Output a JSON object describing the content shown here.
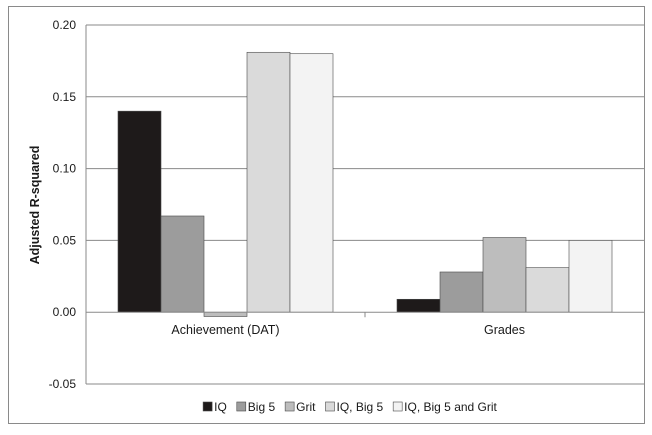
{
  "chart_data": {
    "type": "bar",
    "title": "",
    "xlabel": "",
    "ylabel": "Adjusted R-squared",
    "categories": [
      "Achievement (DAT)",
      "Grades"
    ],
    "series": [
      {
        "name": "IQ",
        "values": [
          0.14,
          0.009
        ],
        "color": "#1e1a1a"
      },
      {
        "name": "Big 5",
        "values": [
          0.067,
          0.028
        ],
        "color": "#9c9c9c"
      },
      {
        "name": "Grit",
        "values": [
          -0.003,
          0.052
        ],
        "color": "#bdbdbd"
      },
      {
        "name": "IQ, Big 5",
        "values": [
          0.181,
          0.031
        ],
        "color": "#dadada"
      },
      {
        "name": "IQ, Big 5 and Grit",
        "values": [
          0.18,
          0.05
        ],
        "color": "#f3f3f3"
      }
    ],
    "ylim": [
      -0.05,
      0.2
    ],
    "yticks": [
      "-0.05",
      "0.00",
      "0.05",
      "0.10",
      "0.15",
      "0.20"
    ],
    "grid": true,
    "legend_position": "bottom"
  }
}
